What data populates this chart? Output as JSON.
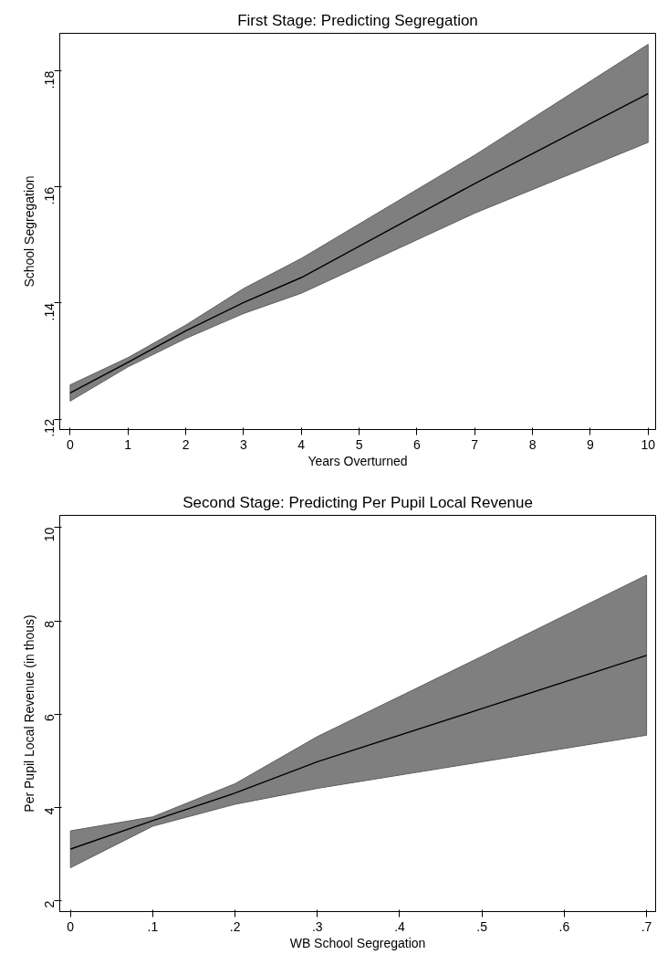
{
  "chart_data": [
    {
      "type": "line",
      "title": "First Stage: Predicting Segregation",
      "xlabel": "Years Overturned",
      "ylabel": "School Segregation",
      "xlim": [
        -0.18,
        10.13
      ],
      "ylim": [
        0.1182,
        0.1865
      ],
      "xticks": [
        0,
        1,
        2,
        3,
        4,
        5,
        6,
        7,
        8,
        9,
        10
      ],
      "yticks": [
        {
          "value": 0.12,
          "label": ".12"
        },
        {
          "value": 0.14,
          "label": ".14"
        },
        {
          "value": 0.16,
          "label": ".16"
        },
        {
          "value": 0.18,
          "label": ".18"
        }
      ],
      "grid": false,
      "line_style": "solid",
      "series": [
        {
          "color": "#000000",
          "x": [
            0,
            1,
            2,
            3,
            4,
            7,
            10
          ],
          "values": [
            0.1245,
            0.1298,
            0.1352,
            0.1401,
            0.1444,
            0.1606,
            0.1761
          ],
          "lower": [
            0.1231,
            0.129,
            0.1339,
            0.1382,
            0.1417,
            0.1555,
            0.1677
          ],
          "upper": [
            0.1259,
            0.1306,
            0.1362,
            0.1425,
            0.1477,
            0.1655,
            0.1846
          ]
        }
      ]
    },
    {
      "type": "line",
      "title": "Second Stage: Predicting Per Pupil Local Revenue",
      "xlabel": "WB School Segregation",
      "ylabel": "Per Pupil Local Revenue (in thous)",
      "xlim": [
        -0.013,
        0.711
      ],
      "ylim": [
        1.77,
        10.26
      ],
      "xticks": [
        0,
        {
          "value": 0.1,
          "label": ".1"
        },
        {
          "value": 0.2,
          "label": ".2"
        },
        {
          "value": 0.3,
          "label": ".3"
        },
        {
          "value": 0.4,
          "label": ".4"
        },
        {
          "value": 0.5,
          "label": ".5"
        },
        {
          "value": 0.6,
          "label": ".6"
        },
        {
          "value": 0.7,
          "label": ".7"
        }
      ],
      "yticks": [
        2,
        4,
        6,
        8,
        10
      ],
      "grid": false,
      "line_style": "solid",
      "series": [
        {
          "color": "#000000",
          "x": [
            0,
            0.1,
            0.2,
            0.3,
            0.5,
            0.7
          ],
          "values": [
            3.11,
            3.72,
            4.31,
            4.98,
            6.12,
            7.26
          ],
          "lower": [
            2.71,
            3.6,
            4.07,
            4.41,
            4.98,
            5.55
          ],
          "upper": [
            3.5,
            3.8,
            4.51,
            5.52,
            7.24,
            8.98
          ]
        }
      ]
    }
  ]
}
